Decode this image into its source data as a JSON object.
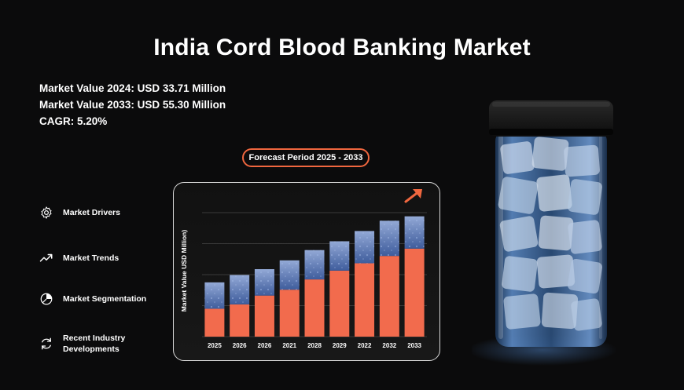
{
  "title": "India Cord Blood Banking Market",
  "stats": [
    "Market Value 2024: USD 33.71 Million",
    "Market Value 2033: USD 55.30 Million",
    "CAGR: 5.20%"
  ],
  "forecast_label": "Forecast Period 2025 - 2033",
  "menu": [
    {
      "label": "Market Drivers",
      "icon": "gear-icon"
    },
    {
      "label": "Market Trends",
      "icon": "trend-line-icon"
    },
    {
      "label": "Market Segmentation",
      "icon": "pie-chart-icon"
    },
    {
      "label": "Recent Industry Developments",
      "icon": "refresh-icon"
    }
  ],
  "colors": {
    "accent": "#f0673f",
    "bar_bottom": "#f26b4d",
    "bar_top": "#5f7fb8",
    "background": "#0b0b0c"
  },
  "chart_data": {
    "type": "bar",
    "stacked": true,
    "categories": [
      "2025",
      "2026",
      "2026",
      "2021",
      "2028",
      "2029",
      "2022",
      "2032",
      "2033"
    ],
    "series": [
      {
        "values": [
          9.5,
          11,
          14,
          16,
          19.5,
          22.5,
          25,
          27.5,
          30
        ]
      },
      {
        "values": [
          9,
          10,
          9,
          10,
          10,
          10,
          11,
          12,
          11
        ]
      }
    ],
    "ylabel": "Market Value USD Million)",
    "ylim": [
      0,
      46
    ],
    "grid": true
  }
}
